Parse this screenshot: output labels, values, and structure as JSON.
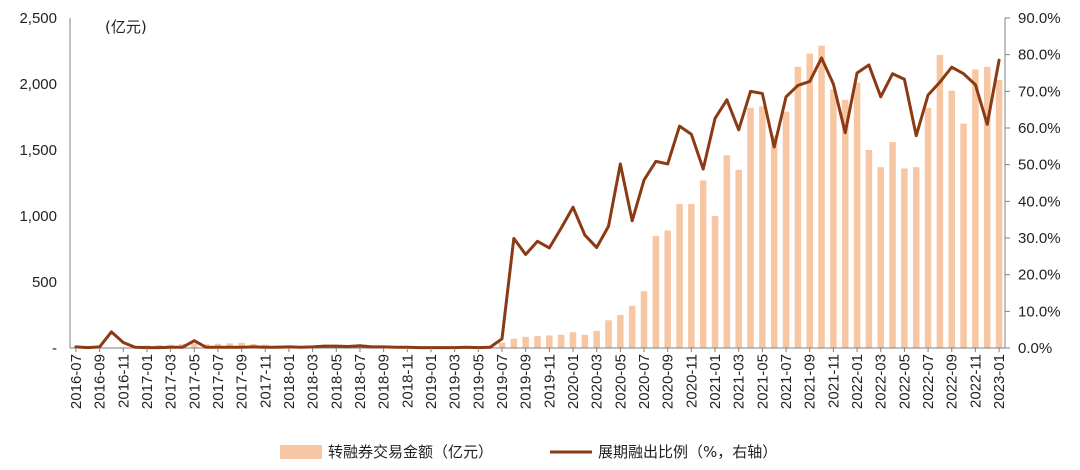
{
  "chart_data": {
    "type": "bar+line",
    "left_unit": "(亿元)",
    "y_left": {
      "min": 0,
      "max": 2500,
      "ticks": [
        "-",
        "500",
        "1,000",
        "1,500",
        "2,000",
        "2,500"
      ],
      "tick_values": [
        0,
        500,
        1000,
        1500,
        2000,
        2500
      ]
    },
    "y_right": {
      "min": 0,
      "max": 90,
      "ticks": [
        "0.0%",
        "10.0%",
        "20.0%",
        "30.0%",
        "40.0%",
        "50.0%",
        "60.0%",
        "70.0%",
        "80.0%",
        "90.0%"
      ],
      "tick_values": [
        0,
        10,
        20,
        30,
        40,
        50,
        60,
        70,
        80,
        90
      ]
    },
    "x_labels": [
      "2016-07",
      "2016-09",
      "2016-11",
      "2017-01",
      "2017-03",
      "2017-05",
      "2017-07",
      "2017-09",
      "2017-11",
      "2018-01",
      "2018-03",
      "2018-05",
      "2018-07",
      "2018-09",
      "2018-11",
      "2019-01",
      "2019-03",
      "2019-05",
      "2019-07",
      "2019-09",
      "2019-11",
      "2020-01",
      "2020-03",
      "2020-05",
      "2020-07",
      "2020-09",
      "2020-11",
      "2021-01",
      "2021-03",
      "2021-05",
      "2021-07",
      "2021-09",
      "2021-11",
      "2022-01",
      "2022-03",
      "2022-05",
      "2022-07",
      "2022-09",
      "2022-11",
      "2023-01"
    ],
    "x": [
      "2016-07",
      "2016-08",
      "2016-09",
      "2016-10",
      "2016-11",
      "2016-12",
      "2017-01",
      "2017-02",
      "2017-03",
      "2017-04",
      "2017-05",
      "2017-06",
      "2017-07",
      "2017-08",
      "2017-09",
      "2017-10",
      "2017-11",
      "2017-12",
      "2018-01",
      "2018-02",
      "2018-03",
      "2018-04",
      "2018-05",
      "2018-06",
      "2018-07",
      "2018-08",
      "2018-09",
      "2018-10",
      "2018-11",
      "2018-12",
      "2019-01",
      "2019-02",
      "2019-03",
      "2019-04",
      "2019-05",
      "2019-06",
      "2019-07",
      "2019-08",
      "2019-09",
      "2019-10",
      "2019-11",
      "2019-12",
      "2020-01",
      "2020-02",
      "2020-03",
      "2020-04",
      "2020-05",
      "2020-06",
      "2020-07",
      "2020-08",
      "2020-09",
      "2020-10",
      "2020-11",
      "2020-12",
      "2021-01",
      "2021-02",
      "2021-03",
      "2021-04",
      "2021-05",
      "2021-06",
      "2021-07",
      "2021-08",
      "2021-09",
      "2021-10",
      "2021-11",
      "2021-12",
      "2022-01",
      "2022-02",
      "2022-03",
      "2022-04",
      "2022-05",
      "2022-06",
      "2022-07",
      "2022-08",
      "2022-09",
      "2022-10",
      "2022-11",
      "2022-12",
      "2023-01"
    ],
    "series": [
      {
        "name": "转融券交易金额（亿元）",
        "type": "bar",
        "axis": "left",
        "color": "#F7C6A3",
        "values": [
          5,
          5,
          5,
          5,
          5,
          5,
          20,
          22,
          25,
          30,
          35,
          28,
          32,
          35,
          40,
          30,
          25,
          20,
          18,
          15,
          12,
          10,
          12,
          10,
          10,
          8,
          6,
          5,
          5,
          5,
          5,
          5,
          12,
          15,
          10,
          8,
          40,
          70,
          85,
          90,
          95,
          100,
          120,
          100,
          130,
          210,
          250,
          320,
          430,
          850,
          890,
          1090,
          1090,
          1270,
          1000,
          1460,
          1350,
          1820,
          1830,
          1610,
          1790,
          2130,
          2230,
          2290,
          1960,
          1880,
          2010,
          1500,
          1370,
          1560,
          1360,
          1370,
          1820,
          2220,
          1950,
          1700,
          2110,
          2130,
          2030
        ]
      },
      {
        "name": "展期融出比例（%，右轴）",
        "type": "line",
        "axis": "right",
        "color": "#8B3A14",
        "values": [
          0.3,
          0.1,
          0.3,
          4.4,
          1.5,
          0.2,
          0.1,
          0.1,
          0.2,
          0.2,
          2.0,
          0.2,
          0.2,
          0.2,
          0.2,
          0.3,
          0.2,
          0.2,
          0.3,
          0.2,
          0.3,
          0.5,
          0.5,
          0.4,
          0.6,
          0.3,
          0.3,
          0.2,
          0.2,
          0.1,
          0.1,
          0.1,
          0.1,
          0.2,
          0.1,
          0.2,
          2.5,
          29.9,
          25.5,
          29.1,
          27.3,
          32.7,
          38.4,
          30.8,
          27.4,
          33.2,
          50.2,
          34.7,
          45.8,
          50.9,
          50.2,
          60.5,
          58.3,
          48.8,
          62.6,
          67.7,
          59.5,
          70.0,
          69.4,
          54.8,
          68.5,
          71.6,
          72.7,
          79.1,
          72.0,
          58.7,
          75.0,
          77.2,
          68.5,
          74.8,
          73.3,
          57.9,
          69.0,
          72.5,
          76.6,
          74.8,
          71.8,
          61.0,
          78.5
        ]
      }
    ],
    "grid": false,
    "legend_position": "bottom"
  }
}
